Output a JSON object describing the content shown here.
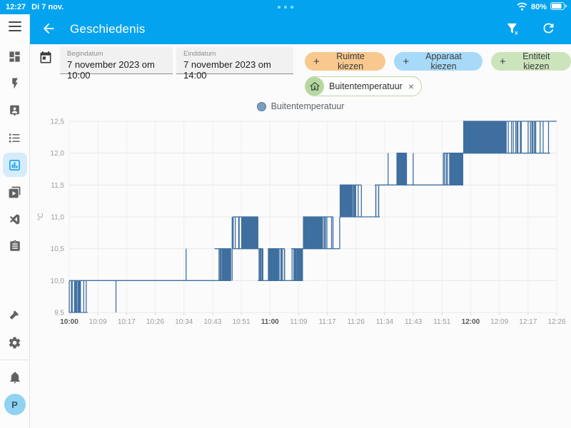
{
  "status_bar": {
    "time": "12:27",
    "date": "Di 7 nov.",
    "battery_percent": "80%"
  },
  "header": {
    "title": "Geschiedenis"
  },
  "sidebar": {
    "avatar_letter": "P",
    "active_item": "history",
    "items": [
      "menu",
      "dashboards",
      "energy",
      "person",
      "logbook",
      "history",
      "media-browser",
      "code-editor",
      "todo-list",
      "developer-tools",
      "settings",
      "notifications",
      "profile"
    ]
  },
  "filters": {
    "start": {
      "label": "Begindatum",
      "value": "7 november 2023 om 10:00"
    },
    "end": {
      "label": "Einddatum",
      "value": "7 november 2023 om 14:00"
    },
    "buttons": [
      {
        "label": "Ruimte kiezen",
        "color": "#f8c88e"
      },
      {
        "label": "Apparaat kiezen",
        "color": "#a7daf8"
      },
      {
        "label": "Entiteit kiezen",
        "color": "#cce4bb"
      }
    ],
    "chip": {
      "label": "Buitentemperatuur",
      "remove": "×"
    }
  },
  "legend": {
    "label": "Buitentemperatuur"
  },
  "colors": {
    "accent_blue": "#04a3ef",
    "chart_line": "#3e6f9f",
    "sidebar_active_bg": "#d6ecfb",
    "sidebar_active_icon": "#18a0ef",
    "avatar_bg": "#8fd2f1",
    "chip_green": "#b7d7a1"
  },
  "chart_data": {
    "type": "line",
    "title": "",
    "series": [
      {
        "name": "Buitentemperatuur",
        "color": "#3e6f9f"
      }
    ],
    "ylabel": "°C",
    "xlabel": "",
    "ylim": [
      9.5,
      12.5
    ],
    "yticks": [
      "9,5",
      "10,0",
      "10,5",
      "11,0",
      "11,5",
      "12,0",
      "12,5"
    ],
    "grid": true,
    "legend_position": "top",
    "x_range_minutes": [
      0,
      146
    ],
    "xticks": [
      {
        "label": "10:00",
        "min": 0,
        "bold": true
      },
      {
        "label": "10:09",
        "min": 9,
        "bold": false
      },
      {
        "label": "10:17",
        "min": 17,
        "bold": false
      },
      {
        "label": "10:26",
        "min": 26,
        "bold": false
      },
      {
        "label": "10:34",
        "min": 34,
        "bold": false
      },
      {
        "label": "10:43",
        "min": 43,
        "bold": false
      },
      {
        "label": "10:51",
        "min": 51,
        "bold": false
      },
      {
        "label": "11:00",
        "min": 60,
        "bold": true
      },
      {
        "label": "11:09",
        "min": 69,
        "bold": false
      },
      {
        "label": "11:17",
        "min": 77,
        "bold": false
      },
      {
        "label": "11:26",
        "min": 86,
        "bold": false
      },
      {
        "label": "11:34",
        "min": 94,
        "bold": false
      },
      {
        "label": "11:43",
        "min": 103,
        "bold": false
      },
      {
        "label": "11:51",
        "min": 111,
        "bold": false
      },
      {
        "label": "12:00",
        "min": 120,
        "bold": true
      },
      {
        "label": "12:09",
        "min": 129,
        "bold": false
      },
      {
        "label": "12:17",
        "min": 137,
        "bold": false
      },
      {
        "label": "12:26",
        "min": 146,
        "bold": false
      }
    ],
    "line_color": "#3e6f9f",
    "bands": [
      {
        "type": "osc",
        "t0": 0,
        "t1": 5.5,
        "low": 9.5,
        "high": 10,
        "style": "lines",
        "n": 16
      },
      {
        "type": "flat",
        "t0": 5.5,
        "t1": 14,
        "v": 10
      },
      {
        "type": "spike",
        "t": 14,
        "low": 9.5,
        "high": 10
      },
      {
        "type": "flat",
        "t0": 14,
        "t1": 35,
        "v": 10
      },
      {
        "type": "spike",
        "t": 35,
        "low": 10,
        "high": 10.5
      },
      {
        "type": "flat",
        "t0": 35,
        "t1": 43.5,
        "v": 10
      },
      {
        "type": "osc",
        "t0": 43.5,
        "t1": 46,
        "low": 10,
        "high": 10.5,
        "style": "lines",
        "n": 7
      },
      {
        "type": "osc",
        "t0": 46,
        "t1": 48.5,
        "low": 10,
        "high": 10.5,
        "style": "solid"
      },
      {
        "type": "spike",
        "t": 48.8,
        "low": 10,
        "high": 11
      },
      {
        "type": "osc",
        "t0": 49,
        "t1": 51.5,
        "low": 10.5,
        "high": 11,
        "style": "lines",
        "n": 6
      },
      {
        "type": "osc",
        "t0": 51.5,
        "t1": 56.5,
        "low": 10.5,
        "high": 11,
        "style": "solid"
      },
      {
        "type": "osc",
        "t0": 56.5,
        "t1": 58,
        "low": 10,
        "high": 10.5,
        "style": "lines",
        "n": 5
      },
      {
        "type": "flat",
        "t0": 58,
        "t1": 59.5,
        "v": 10
      },
      {
        "type": "osc",
        "t0": 59.5,
        "t1": 63,
        "low": 10,
        "high": 10.5,
        "style": "solid"
      },
      {
        "type": "osc",
        "t0": 63,
        "t1": 64.5,
        "low": 10,
        "high": 10.5,
        "style": "lines",
        "n": 4
      },
      {
        "type": "flat",
        "t0": 64.5,
        "t1": 66.5,
        "v": 10
      },
      {
        "type": "osc",
        "t0": 66.5,
        "t1": 68,
        "low": 10,
        "high": 10.5,
        "style": "lines",
        "n": 5
      },
      {
        "type": "osc",
        "t0": 68,
        "t1": 70,
        "low": 10,
        "high": 10.5,
        "style": "solid"
      },
      {
        "type": "osc",
        "t0": 70,
        "t1": 76,
        "low": 10.5,
        "high": 11,
        "style": "solid"
      },
      {
        "type": "osc",
        "t0": 76,
        "t1": 79,
        "low": 10.5,
        "high": 11,
        "style": "lines",
        "n": 5
      },
      {
        "type": "flat",
        "t0": 79,
        "t1": 81,
        "v": 10.5
      },
      {
        "type": "osc",
        "t0": 81,
        "t1": 85,
        "low": 11,
        "high": 11.5,
        "style": "solid"
      },
      {
        "type": "osc",
        "t0": 85,
        "t1": 87.5,
        "low": 11,
        "high": 11.5,
        "style": "lines",
        "n": 6
      },
      {
        "type": "flat",
        "t0": 87.5,
        "t1": 91.5,
        "v": 11
      },
      {
        "type": "osc",
        "t0": 91.5,
        "t1": 93,
        "low": 11,
        "high": 11.5,
        "style": "lines",
        "n": 4
      },
      {
        "type": "flat",
        "t0": 93,
        "t1": 98,
        "v": 11.5
      },
      {
        "type": "spike",
        "t": 95.5,
        "low": 11.5,
        "high": 12
      },
      {
        "type": "osc",
        "t0": 98,
        "t1": 101,
        "low": 11.5,
        "high": 12,
        "style": "solid"
      },
      {
        "type": "flat",
        "t0": 101,
        "t1": 112,
        "v": 11.5
      },
      {
        "type": "spike",
        "t": 103,
        "low": 11.5,
        "high": 12
      },
      {
        "type": "osc",
        "t0": 112,
        "t1": 114,
        "low": 11.5,
        "high": 12,
        "style": "lines",
        "n": 5
      },
      {
        "type": "osc",
        "t0": 114,
        "t1": 118,
        "low": 11.5,
        "high": 12,
        "style": "solid"
      },
      {
        "type": "osc",
        "t0": 118,
        "t1": 131,
        "low": 12,
        "high": 12.5,
        "style": "solid"
      },
      {
        "type": "osc",
        "t0": 131,
        "t1": 139,
        "low": 12,
        "high": 12.5,
        "style": "lines",
        "n": 14
      },
      {
        "type": "osc",
        "t0": 139,
        "t1": 144,
        "low": 12,
        "high": 12.5,
        "style": "lines",
        "n": 6
      },
      {
        "type": "flat",
        "t0": 144,
        "t1": 146,
        "v": 12.5
      }
    ]
  }
}
